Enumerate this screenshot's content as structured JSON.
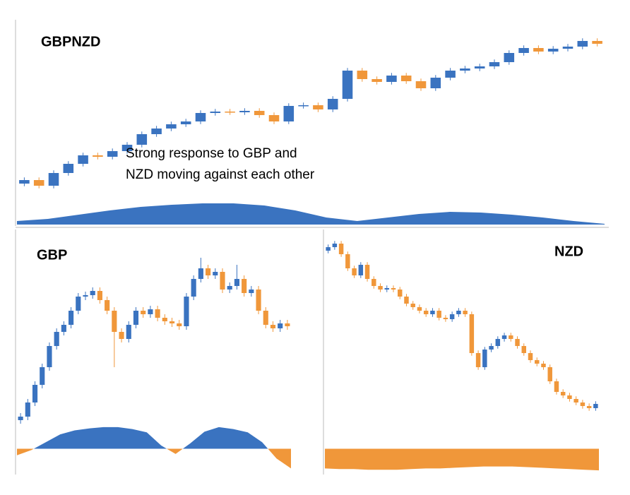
{
  "chart_data": [
    {
      "type": "candlestick",
      "title": "GBPNZD",
      "annotation": [
        "Strong response to GBP and",
        "NZD moving  against each other"
      ],
      "up_color": "#3a73c0",
      "down_color": "#f0973a",
      "ylim": [
        0,
        100
      ],
      "open": [
        8,
        10,
        6.8,
        14,
        19.2,
        24,
        23.2,
        26.4,
        30,
        36,
        39.2,
        41.6,
        43.2,
        48,
        48.8,
        48.4,
        49.2,
        46.8,
        43.2,
        52,
        52.4,
        50,
        56,
        72,
        67.2,
        65.6,
        69.2,
        66,
        62,
        68,
        72,
        73.2,
        74.4,
        76.8,
        82,
        84.8,
        82.8,
        84.4,
        85.6,
        88.8
      ],
      "high": [
        11.5,
        11.5,
        15.5,
        20.7,
        25.5,
        25.5,
        27.9,
        31.5,
        37.5,
        40.7,
        43.1,
        44.7,
        49.5,
        50.3,
        50.3,
        50.7,
        50.7,
        48.3,
        53.5,
        53.9,
        53.9,
        57.5,
        73.5,
        73.5,
        68.7,
        70.7,
        70.7,
        67.5,
        69.5,
        73.5,
        74.7,
        75.9,
        78.3,
        83.5,
        86.3,
        86.3,
        85.9,
        87.1,
        90.3,
        90.3
      ],
      "low": [
        6.5,
        5.3,
        5.3,
        12.5,
        17.7,
        21.7,
        21.7,
        24.9,
        28.5,
        34.5,
        37.7,
        40.1,
        41.7,
        46.5,
        46.9,
        46.9,
        45.3,
        41.7,
        41.7,
        50.5,
        48.5,
        48.5,
        54.5,
        65.7,
        64.1,
        64.1,
        64.5,
        60.5,
        60.5,
        66.5,
        70.5,
        71.7,
        72.9,
        75.3,
        80.5,
        81.3,
        81.3,
        82.9,
        84.1,
        85.7
      ],
      "close": [
        10,
        6.8,
        14,
        19.2,
        24,
        23.2,
        26.4,
        30,
        36,
        39.2,
        41.6,
        43.2,
        48,
        48.8,
        48.4,
        49.2,
        46.8,
        43.2,
        52,
        52.4,
        50,
        56,
        72,
        67.2,
        65.6,
        69.2,
        66,
        62,
        68,
        72,
        73.2,
        74.4,
        76.8,
        82,
        84.8,
        82.8,
        84.4,
        85.6,
        88.8,
        87.2
      ],
      "indicator": {
        "ylim": [
          0,
          35
        ],
        "up_color": "#3a73c0",
        "down_color": "#f0973a",
        "values": [
          5,
          8,
          14,
          20,
          25,
          28,
          30,
          30,
          27,
          20,
          10,
          5,
          10,
          15,
          18,
          17,
          14,
          10,
          5,
          1
        ]
      }
    },
    {
      "type": "candlestick",
      "title": "GBP",
      "up_color": "#3a73c0",
      "down_color": "#f0973a",
      "ylim": [
        0,
        100
      ],
      "open": [
        2,
        4,
        12,
        22,
        32,
        44,
        52,
        56,
        64,
        72,
        72.8,
        75.2,
        70,
        64,
        52,
        48,
        56,
        64,
        62,
        64.8,
        60,
        58,
        56.8,
        55.2,
        72,
        82,
        88,
        84,
        86,
        76,
        78,
        82,
        74,
        76,
        64,
        56,
        54,
        56.8
      ],
      "high": [
        6,
        14,
        24,
        34,
        46,
        54,
        58,
        66,
        74,
        74.8,
        77.2,
        77.2,
        72,
        66,
        54,
        58,
        66,
        66,
        66.8,
        66.8,
        62,
        60,
        58.8,
        74,
        84,
        94,
        90,
        88,
        88,
        80,
        90,
        84,
        78,
        78,
        66,
        58,
        58.8,
        58.8
      ],
      "low": [
        0,
        2,
        10,
        20,
        30,
        42,
        50,
        54,
        62,
        70,
        70.8,
        68,
        62,
        32,
        46,
        46,
        54,
        60,
        60,
        58,
        56,
        54.8,
        53.2,
        53.2,
        70,
        80,
        82,
        82,
        74,
        74,
        76,
        72,
        72,
        62,
        54,
        52,
        52,
        53.2
      ],
      "close": [
        4,
        12,
        22,
        32,
        44,
        52,
        56,
        64,
        72,
        72.8,
        75.2,
        70,
        64,
        52,
        48,
        56,
        64,
        62,
        64.8,
        60,
        58,
        56.8,
        55.2,
        72,
        82,
        88,
        84,
        86,
        76,
        78,
        82,
        74,
        76,
        64,
        56,
        54,
        56.8,
        55.2
      ],
      "indicator": {
        "ylim": [
          -35,
          35
        ],
        "up_color": "#3a73c0",
        "down_color": "#f0973a",
        "values": [
          -10,
          -2,
          10,
          22,
          28,
          31,
          33,
          33,
          30,
          25,
          5,
          -8,
          8,
          26,
          33,
          30,
          25,
          10,
          -15,
          -30
        ]
      }
    },
    {
      "type": "candlestick",
      "title": "NZD",
      "up_color": "#3a73c0",
      "down_color": "#f0973a",
      "ylim": [
        0,
        108
      ],
      "open": [
        98,
        100,
        102,
        96,
        88,
        84,
        90,
        82,
        78,
        76,
        76.8,
        76,
        72,
        68,
        66,
        64,
        62,
        64,
        60,
        59.2,
        62,
        64,
        62,
        40,
        32,
        42,
        44,
        48,
        50,
        48,
        44,
        40,
        36,
        34,
        32,
        24,
        18,
        16,
        14,
        12,
        10,
        8.8
      ],
      "high": [
        101.5,
        103.5,
        103.5,
        97.5,
        89.5,
        91.5,
        91.5,
        83.5,
        79.5,
        78.3,
        78.3,
        77.5,
        73.5,
        69.5,
        67.5,
        65.5,
        65.5,
        65.5,
        61.5,
        63.5,
        65.5,
        65.5,
        63.5,
        41.5,
        43.5,
        45.5,
        49.5,
        51.5,
        51.5,
        49.5,
        45.5,
        41.5,
        37.5,
        35.5,
        33.5,
        25.5,
        19.5,
        17.5,
        15.5,
        13.5,
        11.5,
        12.7
      ],
      "low": [
        96.5,
        98.5,
        94.5,
        86.5,
        82.5,
        82.5,
        80.5,
        76.5,
        74.5,
        74.5,
        74.5,
        70.5,
        66.5,
        64.5,
        62.5,
        60.5,
        60.5,
        58.5,
        57.7,
        57.7,
        60.5,
        60.5,
        38.5,
        30.5,
        30.5,
        40.5,
        42.5,
        46.5,
        46.5,
        42.5,
        38.5,
        34.5,
        32.5,
        30.5,
        22.5,
        16.5,
        14.5,
        12.5,
        10.5,
        8.5,
        7.3,
        7.3
      ],
      "close": [
        100,
        102,
        96,
        88,
        84,
        90,
        82,
        78,
        76,
        76.8,
        76,
        72,
        68,
        66,
        64,
        62,
        64,
        60,
        59.2,
        62,
        64,
        62,
        40,
        32,
        42,
        44,
        48,
        50,
        48,
        44,
        40,
        36,
        34,
        32,
        24,
        18,
        16,
        14,
        12,
        10,
        8.8,
        11.2
      ],
      "indicator": {
        "ylim": [
          -35,
          35
        ],
        "up_color": "#3a73c0",
        "down_color": "#f0973a",
        "values": [
          -30,
          -31,
          -31,
          -32,
          -32,
          -32,
          -31,
          -30,
          -30,
          -29,
          -28,
          -27,
          -27,
          -27,
          -28,
          -29,
          -30,
          -31,
          -32,
          -33
        ]
      }
    }
  ]
}
